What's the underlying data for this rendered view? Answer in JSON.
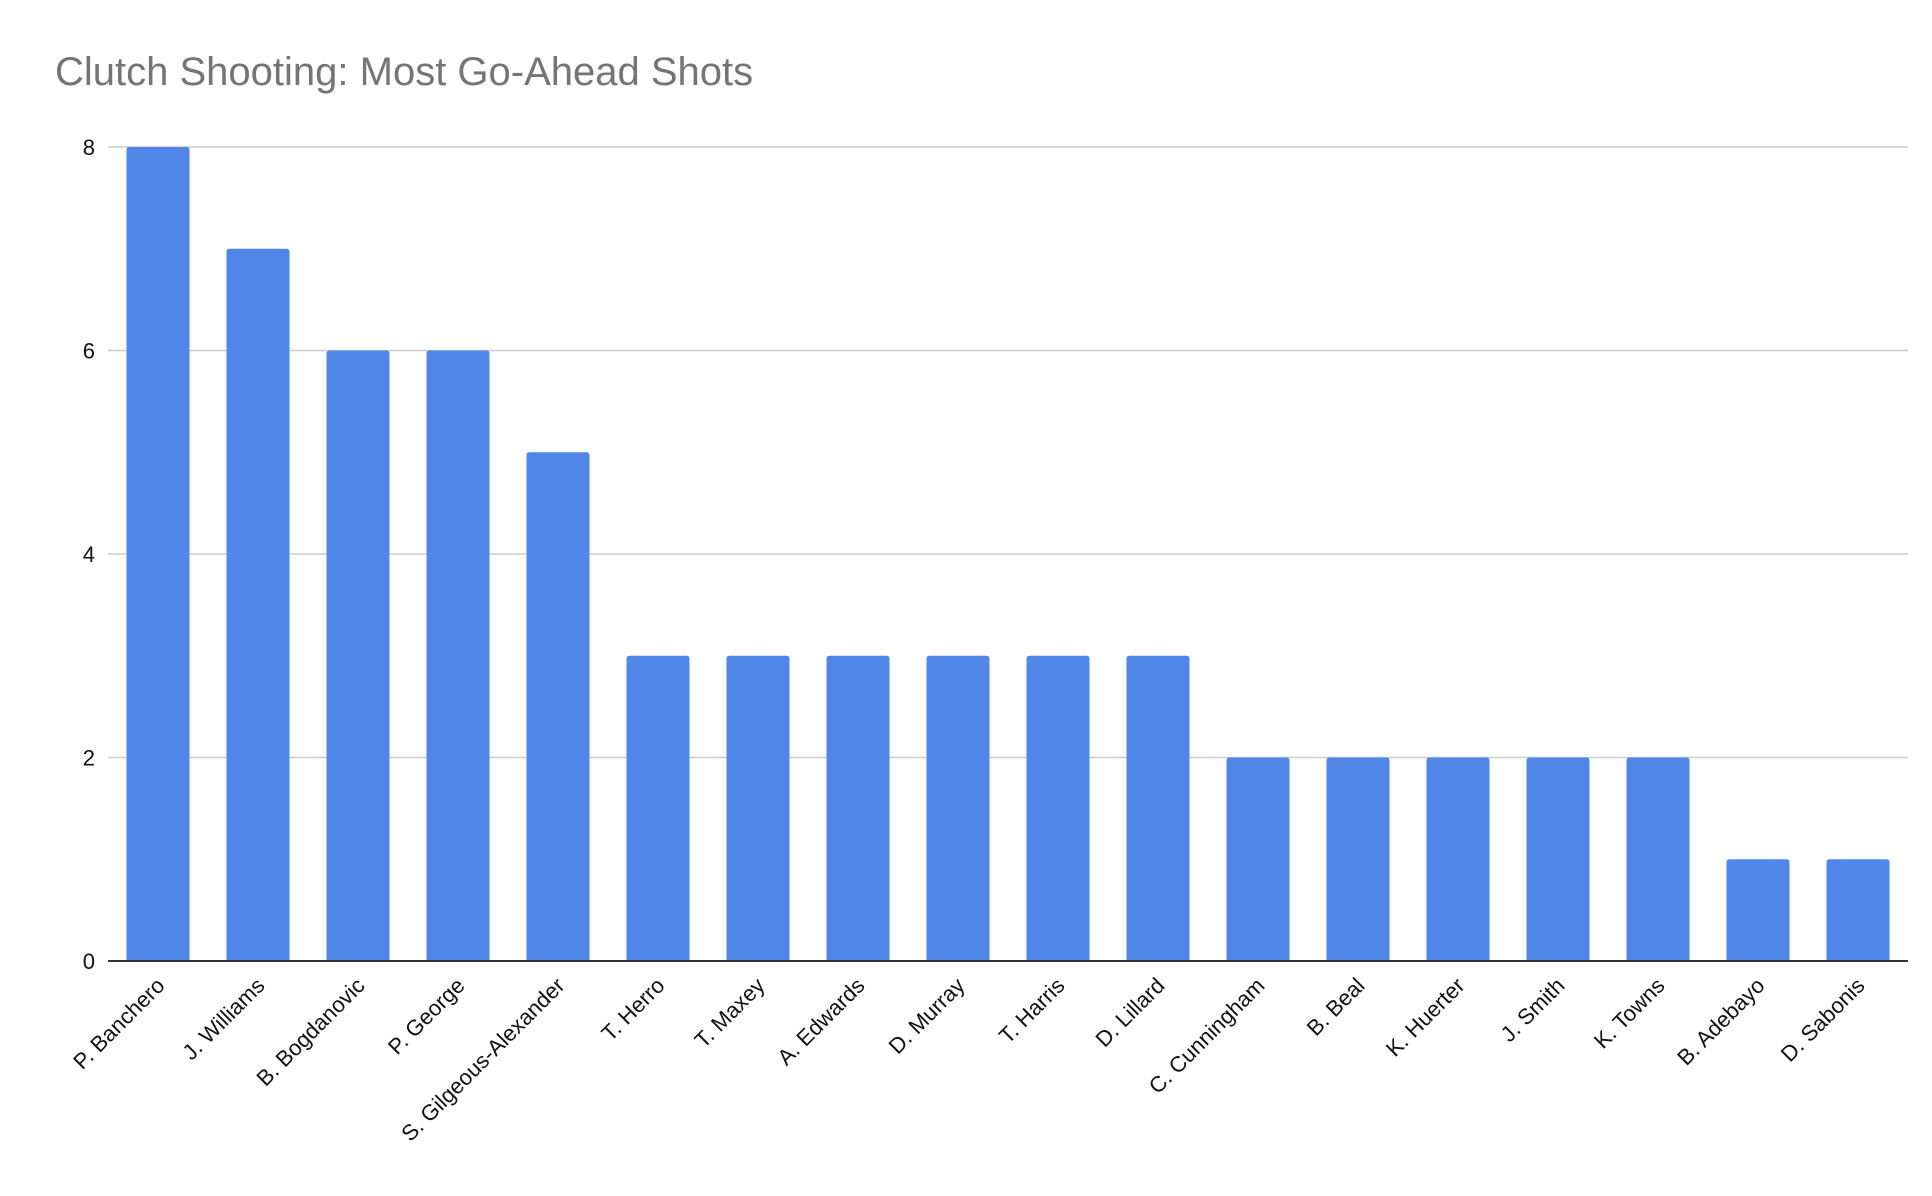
{
  "chart_data": {
    "type": "bar",
    "title": "Clutch Shooting: Most Go-Ahead Shots",
    "xlabel": "",
    "ylabel": "",
    "categories": [
      "P. Banchero",
      "J. Williams",
      "B. Bogdanovic",
      "P. George",
      "S. Gilgeous-Alexander",
      "T. Herro",
      "T. Maxey",
      "A. Edwards",
      "D. Murray",
      "T. Harris",
      "D. Lillard",
      "C. Cunningham",
      "B. Beal",
      "K. Huerter",
      "J. Smith",
      "K. Towns",
      "B. Adebayo",
      "D. Sabonis"
    ],
    "values": [
      8,
      7,
      6,
      6,
      5,
      3,
      3,
      3,
      3,
      3,
      3,
      2,
      2,
      2,
      2,
      2,
      1,
      1
    ],
    "ylim": [
      0,
      8
    ],
    "yticks": [
      0,
      2,
      4,
      6,
      8
    ],
    "grid": true,
    "legend": "none",
    "colors": {
      "bar": "#4f86e8",
      "gridline": "#cccccc",
      "baseline": "#333333",
      "title": "#757575"
    }
  }
}
